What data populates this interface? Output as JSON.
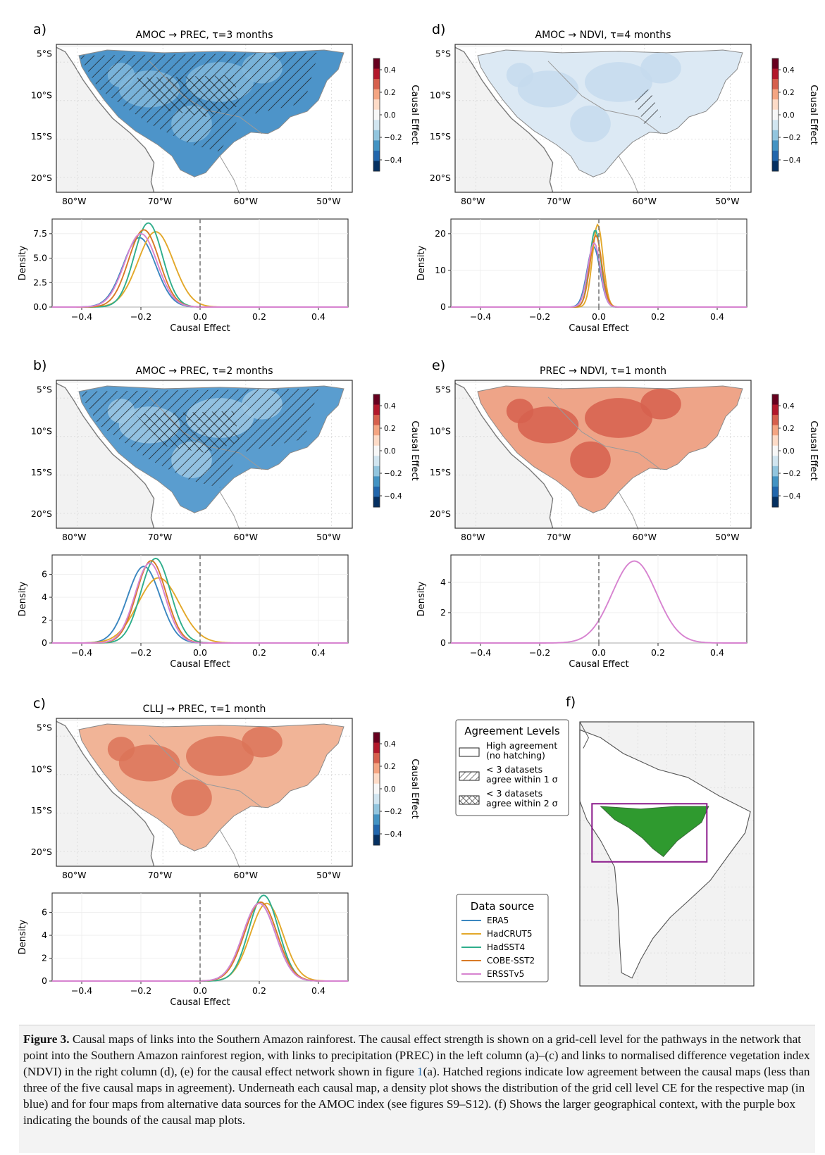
{
  "panels": [
    {
      "id": "a",
      "letter": "a)",
      "title": "AMOC → PREC, τ=3 months",
      "fill": "#4d94c9",
      "fill2": "#80b7dc",
      "hatch": "both",
      "cbar_label": "Causal Effect",
      "density": {
        "xlabel": "Causal Effect",
        "ylabel": "Density",
        "yticks": [
          "0.0",
          "2.5",
          "5.0",
          "7.5"
        ]
      }
    },
    {
      "id": "b",
      "letter": "b)",
      "title": "AMOC → PREC, τ=2 months",
      "fill": "#5a9dcf",
      "fill2": "#9cc8e4",
      "hatch": "both",
      "cbar_label": "Causal Effect",
      "density": {
        "xlabel": "Causal Effect",
        "ylabel": "Density",
        "yticks": [
          "0",
          "2",
          "4",
          "6"
        ]
      }
    },
    {
      "id": "c",
      "letter": "c)",
      "title": "CLLJ → PREC, τ=1 month",
      "fill": "#f1b497",
      "fill2": "#dc7358",
      "hatch": "none",
      "cbar_label": "Causal Effect",
      "density": {
        "xlabel": "Causal Effect",
        "ylabel": "Density",
        "yticks": [
          "0",
          "2",
          "4",
          "6"
        ]
      }
    },
    {
      "id": "d",
      "letter": "d)",
      "title": "AMOC → NDVI, τ=4 months",
      "fill": "#dce9f4",
      "fill2": "#c6daed",
      "hatch": "few",
      "cbar_label": "Causal Effect",
      "density": {
        "xlabel": "Causal Effect",
        "ylabel": "Density",
        "yticks": [
          "0",
          "10",
          "20"
        ]
      }
    },
    {
      "id": "e",
      "letter": "e)",
      "title": "PREC → NDVI, τ=1 month",
      "fill": "#eea488",
      "fill2": "#d6604d",
      "hatch": "none",
      "cbar_label": "Causal Effect",
      "density": {
        "xlabel": "Causal Effect",
        "ylabel": "Density",
        "yticks": [
          "0",
          "2",
          "4"
        ]
      }
    }
  ],
  "map_axes": {
    "lat_ticks": [
      "5°S",
      "10°S",
      "15°S",
      "20°S"
    ],
    "lon_ticks": [
      "80°W",
      "70°W",
      "60°W",
      "50°W"
    ]
  },
  "colorbar": {
    "ticks": [
      "0.4",
      "0.2",
      "0.0",
      "−0.2",
      "−0.4"
    ],
    "colors": [
      "#67001f",
      "#b2182b",
      "#d6604d",
      "#f4a582",
      "#fddbc7",
      "#f7f7f7",
      "#d1e5f0",
      "#92c5de",
      "#4393c3",
      "#2166ac",
      "#053061"
    ]
  },
  "density_xticks": [
    "−0.4",
    "−0.2",
    "0.0",
    "0.2",
    "0.4"
  ],
  "panel_f": {
    "letter": "f)",
    "agreement_legend": {
      "title": "Agreement Levels",
      "items": [
        {
          "label": "High agreement\n(no hatching)",
          "pattern": "none"
        },
        {
          "label": "< 3 datasets\nagree within 1 σ",
          "pattern": "diag"
        },
        {
          "label": "< 3 datasets\nagree within 2 σ",
          "pattern": "cross"
        }
      ]
    },
    "source_legend": {
      "title": "Data source",
      "items": [
        {
          "label": "ERA5",
          "color": "#3b87c0"
        },
        {
          "label": "HadCRUT5",
          "color": "#e3a82a"
        },
        {
          "label": "HadSST4",
          "color": "#2fae8c"
        },
        {
          "label": "COBE-SST2",
          "color": "#d87a26"
        },
        {
          "label": "ERSSTv5",
          "color": "#d783d0"
        }
      ]
    },
    "region_color": "#2f9a2f",
    "box_color": "#8b1a8b"
  },
  "chart_data": [
    {
      "panel": "a",
      "type": "line",
      "xlabel": "Causal Effect",
      "ylabel": "Density",
      "xlim": [
        -0.5,
        0.5
      ],
      "ylim": [
        0,
        9
      ],
      "vline_x": 0.0,
      "series": [
        {
          "name": "ERA5",
          "mean": -0.205,
          "sd": 0.055,
          "peak": 7.1
        },
        {
          "name": "HadCRUT5",
          "mean": -0.15,
          "sd": 0.06,
          "peak": 7.7
        },
        {
          "name": "HadSST4",
          "mean": -0.175,
          "sd": 0.048,
          "peak": 8.6
        },
        {
          "name": "COBE-SST2",
          "mean": -0.19,
          "sd": 0.052,
          "peak": 7.9
        },
        {
          "name": "ERSSTv5",
          "mean": -0.2,
          "sd": 0.055,
          "peak": 7.5
        }
      ]
    },
    {
      "panel": "b",
      "type": "line",
      "xlabel": "Causal Effect",
      "ylabel": "Density",
      "xlim": [
        -0.5,
        0.5
      ],
      "ylim": [
        0,
        7.7
      ],
      "vline_x": 0.0,
      "series": [
        {
          "name": "ERA5",
          "mean": -0.19,
          "sd": 0.055,
          "peak": 6.7
        },
        {
          "name": "HadCRUT5",
          "mean": -0.14,
          "sd": 0.07,
          "peak": 5.7
        },
        {
          "name": "HadSST4",
          "mean": -0.15,
          "sd": 0.05,
          "peak": 7.4
        },
        {
          "name": "COBE-SST2",
          "mean": -0.165,
          "sd": 0.05,
          "peak": 7.2
        },
        {
          "name": "ERSSTv5",
          "mean": -0.17,
          "sd": 0.05,
          "peak": 7.0
        }
      ]
    },
    {
      "panel": "c",
      "type": "line",
      "xlabel": "Causal Effect",
      "ylabel": "Density",
      "xlim": [
        -0.5,
        0.5
      ],
      "ylim": [
        0,
        7.7
      ],
      "vline_x": 0.0,
      "series": [
        {
          "name": "ERA5",
          "mean": 0.2,
          "sd": 0.055,
          "peak": 6.8
        },
        {
          "name": "HadCRUT5",
          "mean": 0.225,
          "sd": 0.055,
          "peak": 6.8
        },
        {
          "name": "HadSST4",
          "mean": 0.215,
          "sd": 0.05,
          "peak": 7.5
        },
        {
          "name": "COBE-SST2",
          "mean": 0.205,
          "sd": 0.055,
          "peak": 6.9
        },
        {
          "name": "ERSSTv5",
          "mean": 0.2,
          "sd": 0.055,
          "peak": 6.8
        }
      ]
    },
    {
      "panel": "d",
      "type": "line",
      "xlabel": "Causal Effect",
      "ylabel": "Density",
      "xlim": [
        -0.5,
        0.5
      ],
      "ylim": [
        0,
        24
      ],
      "vline_x": 0.0,
      "series": [
        {
          "name": "ERA5",
          "mean": -0.018,
          "sd": 0.022,
          "peak": 16.5
        },
        {
          "name": "HadCRUT5",
          "mean": -0.004,
          "sd": 0.018,
          "peak": 22.5
        },
        {
          "name": "HadSST4",
          "mean": -0.012,
          "sd": 0.019,
          "peak": 21.0
        },
        {
          "name": "COBE-SST2",
          "mean": -0.01,
          "sd": 0.02,
          "peak": 19.5
        },
        {
          "name": "ERSSTv5",
          "mean": -0.016,
          "sd": 0.021,
          "peak": 17.5
        }
      ]
    },
    {
      "panel": "e",
      "type": "line",
      "xlabel": "Causal Effect",
      "ylabel": "Density",
      "xlim": [
        -0.5,
        0.5
      ],
      "ylim": [
        0,
        5.8
      ],
      "vline_x": 0.0,
      "series": [
        {
          "name": "ERSSTv5",
          "mean": 0.12,
          "sd": 0.075,
          "peak": 5.4
        }
      ]
    }
  ],
  "caption": {
    "label": "Figure 3.",
    "text_before_ref": " Causal maps of links into the Southern Amazon rainforest. The causal effect strength is shown on a grid-cell level for the pathways in the network that point into the Southern Amazon rainforest region, with links to precipitation (PREC) in the left column (a)–(c) and links to normalised difference vegetation index (NDVI) in the right column (d), (e) for the causal effect network shown in figure ",
    "ref": "1",
    "text_after_ref": "(a). Hatched regions indicate low agreement between the causal maps (less than three of the five causal maps in agreement). Underneath each causal map, a density plot shows the distribution of the grid cell level CE for the respective map (in blue) and for four maps from alternative data sources for the AMOC index (see figures S9–S12). (f) Shows the larger geographical context, with the purple box indicating the bounds of the causal map plots."
  }
}
